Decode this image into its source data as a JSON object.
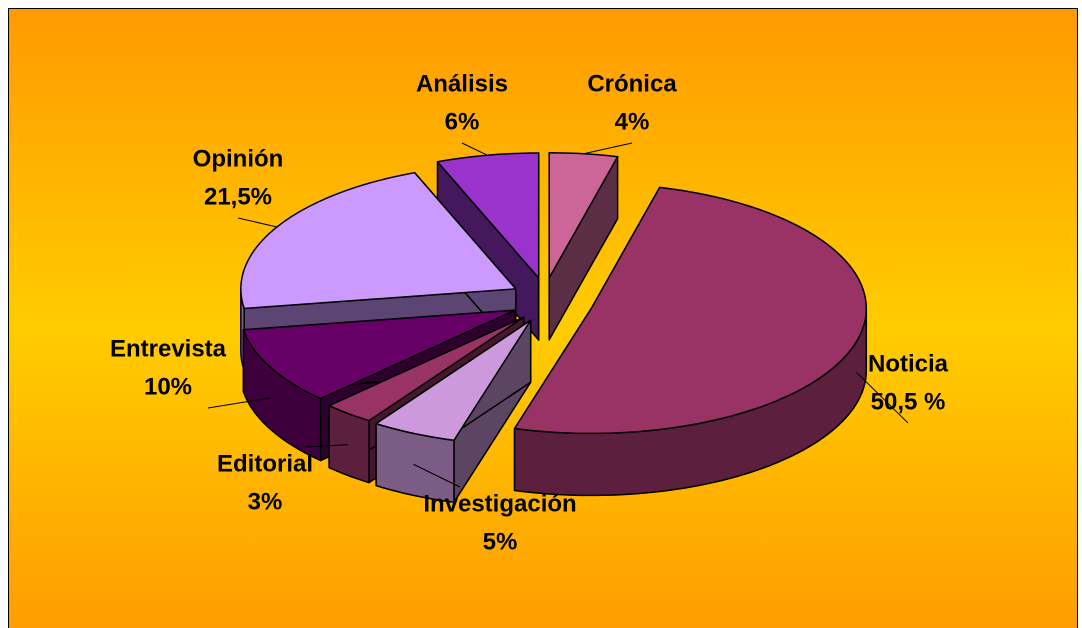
{
  "chart_data": {
    "type": "pie",
    "categories": [
      "Crónica",
      "Noticia",
      "Investigación",
      "Editorial",
      "Entrevista",
      "Opinión",
      "Análisis"
    ],
    "values": [
      4,
      50.5,
      5,
      3,
      10,
      21.5,
      6
    ],
    "value_labels": [
      "4%",
      "50,5 %",
      "5%",
      "3%",
      "10%",
      "21,5%",
      "6%"
    ],
    "colors": [
      "#cc6699",
      "#993366",
      "#cc99dd",
      "#993366",
      "#660066",
      "#cc99ff",
      "#9933cc"
    ]
  }
}
